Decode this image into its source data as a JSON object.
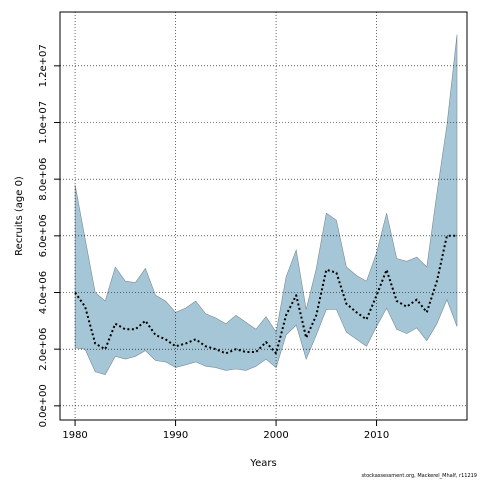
{
  "chart_data": {
    "type": "area",
    "title": "",
    "xlabel": "Years",
    "ylabel": "Recruits (age 0)",
    "xlim": [
      1978.5,
      2019
    ],
    "ylim": [
      -500000,
      13900000
    ],
    "x_ticks": [
      1980,
      1990,
      2000,
      2010
    ],
    "y_ticks": [
      0,
      2000000,
      4000000,
      6000000,
      8000000,
      10000000,
      12000000
    ],
    "y_tick_labels": [
      "0.0e+00",
      "2.0e+06",
      "4.0e+06",
      "6.0e+06",
      "8.0e+06",
      "1.0e+07",
      "1.2e+07"
    ],
    "grid": true,
    "band_color": "#a5c6d7",
    "band_edge_color": "#7a8a94",
    "line_color": "#000000",
    "series": [
      {
        "kind": "estimate",
        "x": [
          1980,
          1981,
          1982,
          1983,
          1984,
          1985,
          1986,
          1987,
          1988,
          1989,
          1990,
          1991,
          1992,
          1993,
          1994,
          1995,
          1996,
          1997,
          1998,
          1999,
          2000,
          2001,
          2002,
          2003,
          2004,
          2005,
          2006,
          2007,
          2008,
          2009,
          2010,
          2011,
          2012,
          2013,
          2014,
          2015,
          2016,
          2017,
          2018
        ],
        "values": [
          4000000,
          3500000,
          2200000,
          2000000,
          2900000,
          2700000,
          2700000,
          3000000,
          2500000,
          2350000,
          2100000,
          2200000,
          2350000,
          2100000,
          2000000,
          1850000,
          2000000,
          1900000,
          1900000,
          2250000,
          1850000,
          3200000,
          3900000,
          2400000,
          3200000,
          4800000,
          4700000,
          3600000,
          3300000,
          3050000,
          3900000,
          4800000,
          3700000,
          3500000,
          3750000,
          3300000,
          4400000,
          6000000,
          6000000
        ]
      },
      {
        "kind": "interval",
        "x": [
          1980,
          1981,
          1982,
          1983,
          1984,
          1985,
          1986,
          1987,
          1988,
          1989,
          1990,
          1991,
          1992,
          1993,
          1994,
          1995,
          1996,
          1997,
          1998,
          1999,
          2000,
          2001,
          2002,
          2003,
          2004,
          2005,
          2006,
          2007,
          2008,
          2009,
          2010,
          2011,
          2012,
          2013,
          2014,
          2015,
          2016,
          2017,
          2018
        ],
        "upper": [
          7800000,
          5900000,
          4000000,
          3700000,
          4900000,
          4400000,
          4350000,
          4850000,
          3900000,
          3700000,
          3300000,
          3450000,
          3700000,
          3250000,
          3100000,
          2900000,
          3200000,
          2950000,
          2700000,
          3150000,
          2600000,
          4550000,
          5500000,
          3400000,
          4850000,
          6800000,
          6550000,
          4900000,
          4600000,
          4400000,
          5400000,
          6800000,
          5200000,
          5100000,
          5250000,
          4900000,
          7500000,
          9900000,
          13100000
        ],
        "lower": [
          2050000,
          2000000,
          1200000,
          1100000,
          1750000,
          1650000,
          1750000,
          1950000,
          1600000,
          1550000,
          1350000,
          1450000,
          1550000,
          1400000,
          1350000,
          1250000,
          1300000,
          1250000,
          1400000,
          1650000,
          1350000,
          2500000,
          2850000,
          1650000,
          2500000,
          3400000,
          3400000,
          2600000,
          2350000,
          2100000,
          2800000,
          3450000,
          2700000,
          2550000,
          2750000,
          2300000,
          2900000,
          3750000,
          2800000
        ]
      }
    ]
  },
  "caption": "stockassessment.org, Mackerel_Mhalf, r11219"
}
